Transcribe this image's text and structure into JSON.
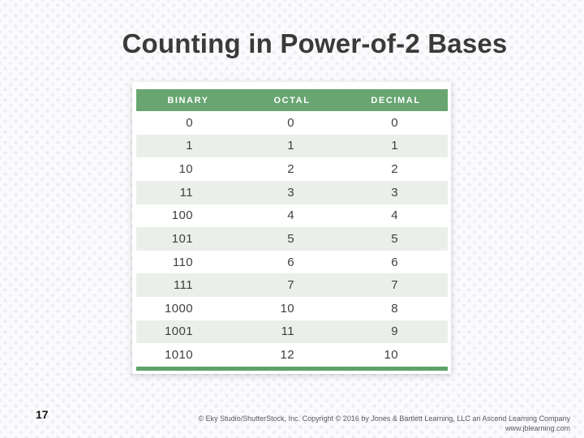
{
  "slide": {
    "title": "Counting in Power-of-2 Bases",
    "page_number": "17",
    "footer": {
      "line1": "© Eky Studio/ShutterStock, Inc. Copyright © 2016 by Jones & Bartlett Learning, LLC an Ascend Learning Company",
      "line2": "www.jblearning.com"
    }
  },
  "table": {
    "columns": [
      "BINARY",
      "OCTAL",
      "DECIMAL"
    ],
    "rows": [
      [
        "0",
        "0",
        "0"
      ],
      [
        "1",
        "1",
        "1"
      ],
      [
        "10",
        "2",
        "2"
      ],
      [
        "11",
        "3",
        "3"
      ],
      [
        "100",
        "4",
        "4"
      ],
      [
        "101",
        "5",
        "5"
      ],
      [
        "110",
        "6",
        "6"
      ],
      [
        "111",
        "7",
        "7"
      ],
      [
        "1000",
        "10",
        "8"
      ],
      [
        "1001",
        "11",
        "9"
      ],
      [
        "1010",
        "12",
        "10"
      ]
    ]
  },
  "colors": {
    "header_green": "#68a571",
    "bottom_bar_green": "#5da266",
    "row_alt": "#ebefe9",
    "title_text": "#3a3a3a"
  }
}
